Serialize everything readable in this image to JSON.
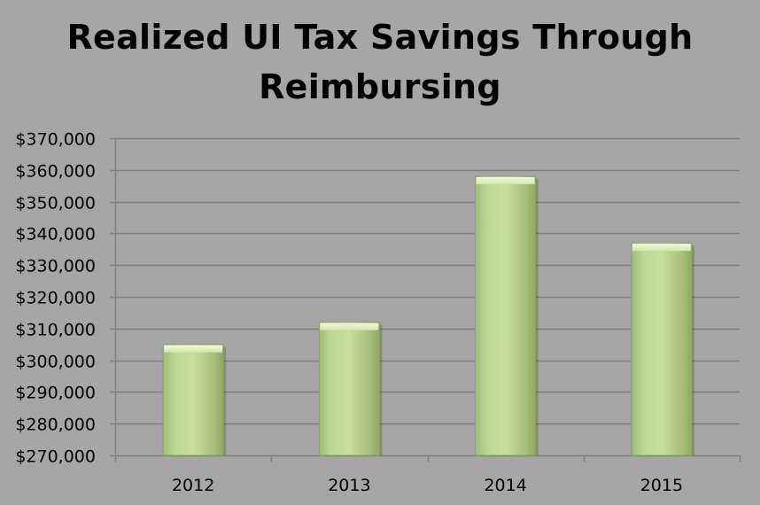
{
  "chart_data": {
    "type": "bar",
    "title_lines": [
      "Realized UI Tax Savings Through",
      "Reimbursing"
    ],
    "categories": [
      "2012",
      "2013",
      "2014",
      "2015"
    ],
    "values": [
      305000,
      312000,
      358000,
      337000
    ],
    "ylim": [
      270000,
      370000
    ],
    "yticks": [
      270000,
      280000,
      290000,
      300000,
      310000,
      320000,
      330000,
      340000,
      350000,
      360000,
      370000
    ],
    "ytick_labels": [
      "$270,000",
      "$280,000",
      "$290,000",
      "$300,000",
      "$310,000",
      "$320,000",
      "$330,000",
      "$340,000",
      "$350,000",
      "$360,000",
      "$370,000"
    ],
    "xlabel": "",
    "ylabel": "",
    "grid": true,
    "legend": "none",
    "bar_color": "#b5d08a",
    "background_color": "#a6a6a6",
    "gridline_color": "#7f7f7f"
  }
}
